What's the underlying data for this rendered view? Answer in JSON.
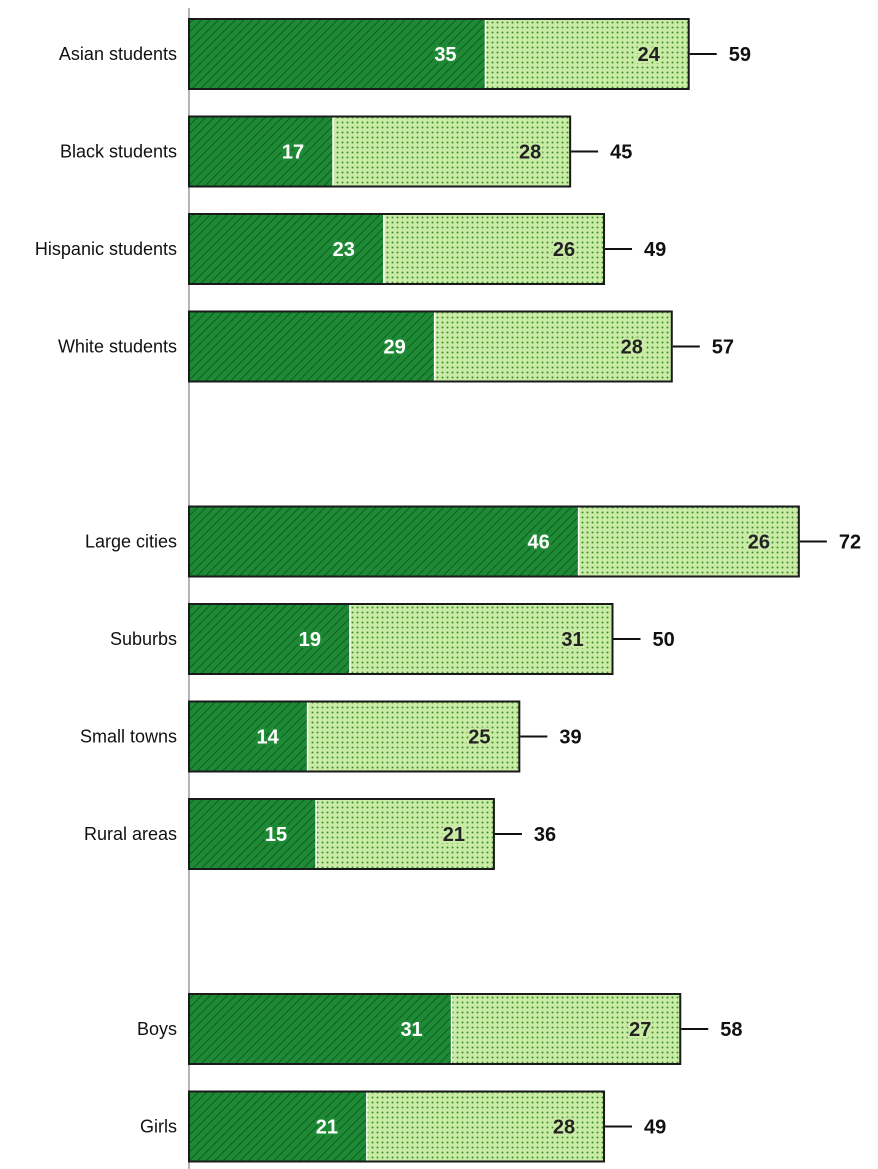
{
  "chart_data": {
    "type": "bar",
    "orientation": "horizontal",
    "stacked": true,
    "categories": [
      "Asian students",
      "Black students",
      "Hispanic students",
      "White students",
      "Large cities",
      "Suburbs",
      "Small towns",
      "Rural areas",
      "Boys",
      "Girls"
    ],
    "groups": [
      [
        "Asian students",
        "Black students",
        "Hispanic students",
        "White students"
      ],
      [
        "Large cities",
        "Suburbs",
        "Small towns",
        "Rural areas"
      ],
      [
        "Boys",
        "Girls"
      ]
    ],
    "series": [
      {
        "values": [
          35,
          17,
          23,
          29,
          46,
          19,
          14,
          15,
          31,
          21
        ]
      },
      {
        "values": [
          24,
          28,
          26,
          28,
          26,
          31,
          25,
          21,
          27,
          28
        ]
      }
    ],
    "totals": [
      59,
      45,
      49,
      57,
      72,
      50,
      39,
      36,
      58,
      49
    ],
    "xlim": [
      0,
      72
    ],
    "grid": false,
    "legend": "none",
    "colors": {
      "series1_fill": "#1f8a35",
      "series1_hatch": "#0f5e22",
      "series2_fill": "#c9eba5",
      "series2_dots": "#3a8f2c",
      "bar_outline": "#1a1a1a",
      "axis": "#b5b5b5"
    }
  }
}
